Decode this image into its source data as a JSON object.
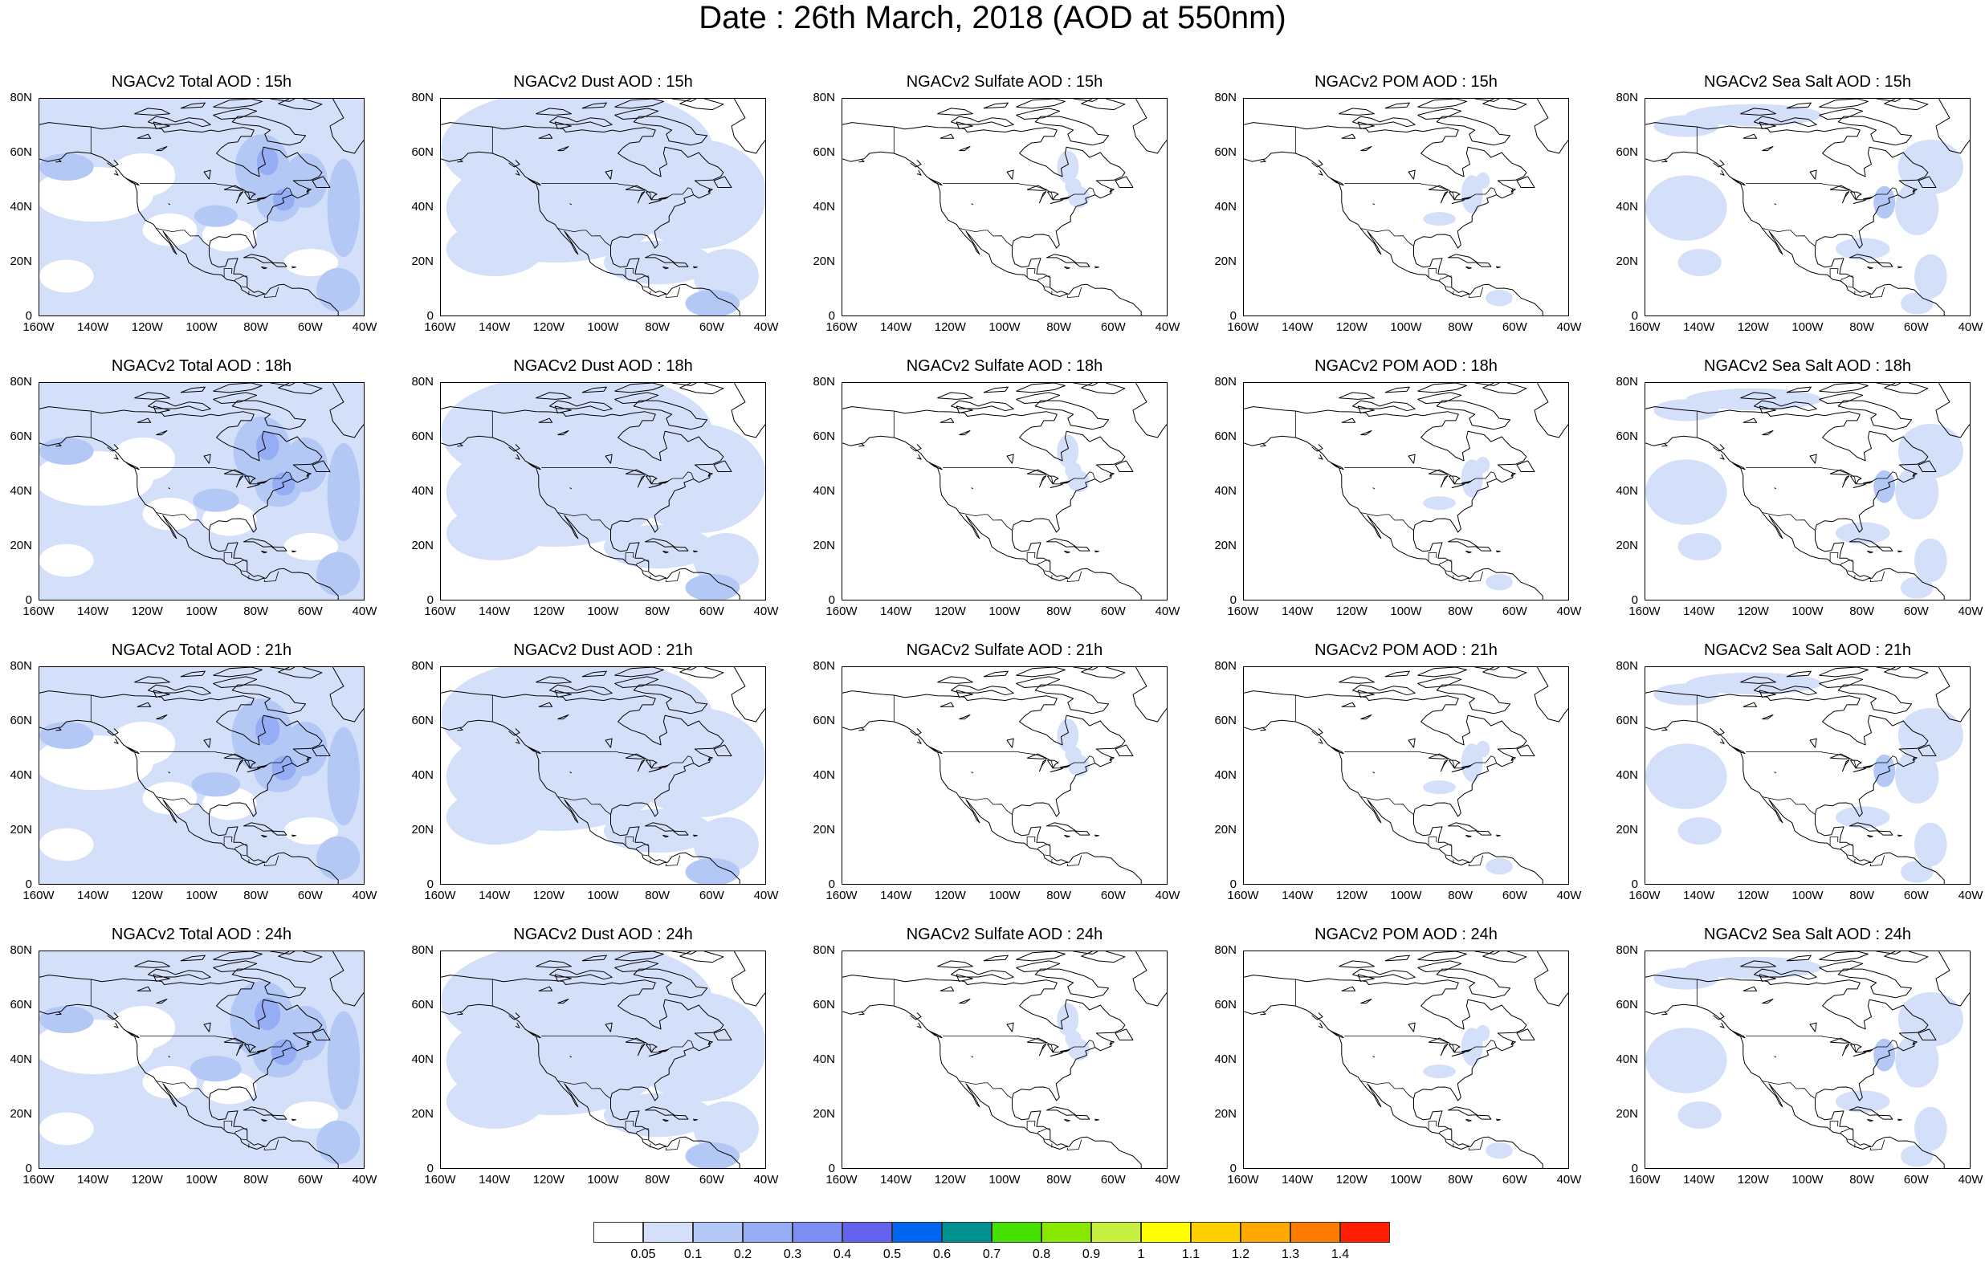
{
  "title": "Date : 26th March, 2018 (AOD at 550nm)",
  "lat_ticks": [
    "80N",
    "60N",
    "40N",
    "20N",
    "0"
  ],
  "lon_ticks": [
    "160W",
    "140W",
    "120W",
    "100W",
    "80W",
    "60W",
    "40W"
  ],
  "panels": [
    {
      "title": "NGACv2 Total AOD : 15h",
      "species": "total",
      "hour": "15h"
    },
    {
      "title": "NGACv2 Dust AOD : 15h",
      "species": "dust",
      "hour": "15h"
    },
    {
      "title": "NGACv2 Sulfate AOD : 15h",
      "species": "sulfate",
      "hour": "15h"
    },
    {
      "title": "NGACv2 POM AOD : 15h",
      "species": "pom",
      "hour": "15h"
    },
    {
      "title": "NGACv2 Sea Salt AOD : 15h",
      "species": "seasalt",
      "hour": "15h"
    },
    {
      "title": "NGACv2 Total AOD : 18h",
      "species": "total",
      "hour": "18h"
    },
    {
      "title": "NGACv2 Dust AOD : 18h",
      "species": "dust",
      "hour": "18h"
    },
    {
      "title": "NGACv2 Sulfate AOD : 18h",
      "species": "sulfate",
      "hour": "18h"
    },
    {
      "title": "NGACv2 POM AOD : 18h",
      "species": "pom",
      "hour": "18h"
    },
    {
      "title": "NGACv2 Sea Salt AOD : 18h",
      "species": "seasalt",
      "hour": "18h"
    },
    {
      "title": "NGACv2 Total AOD : 21h",
      "species": "total",
      "hour": "21h"
    },
    {
      "title": "NGACv2 Dust AOD : 21h",
      "species": "dust",
      "hour": "21h"
    },
    {
      "title": "NGACv2 Sulfate AOD : 21h",
      "species": "sulfate",
      "hour": "21h"
    },
    {
      "title": "NGACv2 POM AOD : 21h",
      "species": "pom",
      "hour": "21h"
    },
    {
      "title": "NGACv2 Sea Salt AOD : 21h",
      "species": "seasalt",
      "hour": "21h"
    },
    {
      "title": "NGACv2 Total AOD : 24h",
      "species": "total",
      "hour": "24h"
    },
    {
      "title": "NGACv2 Dust AOD : 24h",
      "species": "dust",
      "hour": "24h"
    },
    {
      "title": "NGACv2 Sulfate AOD : 24h",
      "species": "sulfate",
      "hour": "24h"
    },
    {
      "title": "NGACv2 POM AOD : 24h",
      "species": "pom",
      "hour": "24h"
    },
    {
      "title": "NGACv2 Sea Salt  AOD : 24h",
      "species": "seasalt",
      "hour": "24h"
    }
  ],
  "colorbar": {
    "colors": [
      "#ffffff",
      "#d4e0fa",
      "#b4c8f6",
      "#95adf4",
      "#7a8ef4",
      "#6262ec",
      "#0066f0",
      "#009090",
      "#44e000",
      "#88e800",
      "#c6f040",
      "#ffff00",
      "#ffd000",
      "#ffa800",
      "#ff7a00",
      "#ff1e00"
    ],
    "labels": [
      "0.05",
      "0.1",
      "0.2",
      "0.3",
      "0.4",
      "0.5",
      "0.6",
      "0.7",
      "0.8",
      "0.9",
      "1",
      "1.1",
      "1.2",
      "1.3",
      "1.4"
    ]
  }
}
